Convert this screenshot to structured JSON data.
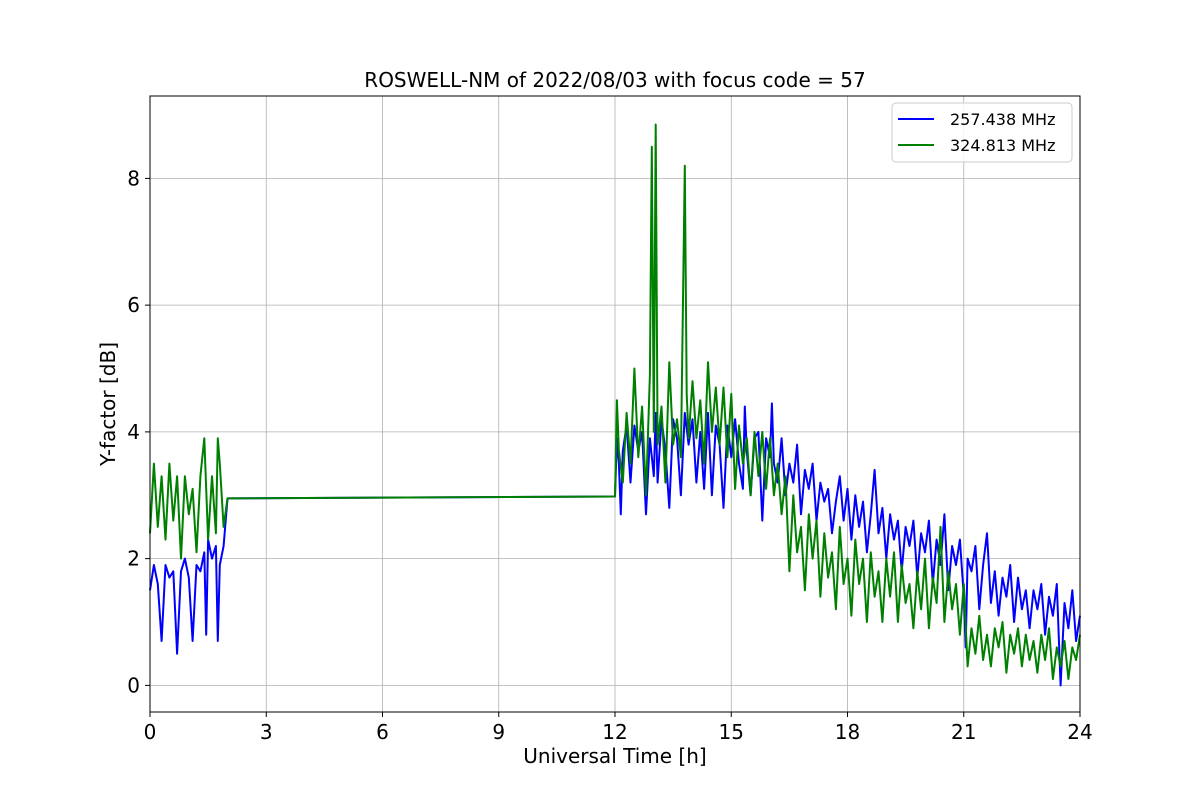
{
  "chart_data": {
    "type": "line",
    "title": "ROSWELL-NM of 2022/08/03 with focus code = 57",
    "xlabel": "Universal Time [h]",
    "ylabel": "Y-factor [dB]",
    "xlim": [
      0,
      24
    ],
    "ylim": [
      -0.42,
      9.3
    ],
    "xticks": [
      0,
      3,
      6,
      9,
      12,
      15,
      18,
      21,
      24
    ],
    "yticks": [
      0,
      2,
      4,
      6,
      8
    ],
    "grid": true,
    "legend_position": "upper right",
    "series": [
      {
        "name": "257.438 MHz",
        "color": "#0000ff",
        "points": [
          [
            0.0,
            1.5
          ],
          [
            0.1,
            1.9
          ],
          [
            0.2,
            1.6
          ],
          [
            0.3,
            0.7
          ],
          [
            0.4,
            1.9
          ],
          [
            0.5,
            1.7
          ],
          [
            0.6,
            1.8
          ],
          [
            0.7,
            0.5
          ],
          [
            0.8,
            1.8
          ],
          [
            0.9,
            2.0
          ],
          [
            1.0,
            1.7
          ],
          [
            1.1,
            0.7
          ],
          [
            1.2,
            1.9
          ],
          [
            1.3,
            1.8
          ],
          [
            1.4,
            2.1
          ],
          [
            1.45,
            0.8
          ],
          [
            1.5,
            2.3
          ],
          [
            1.6,
            2.0
          ],
          [
            1.7,
            2.2
          ],
          [
            1.75,
            0.7
          ],
          [
            1.8,
            1.9
          ],
          [
            1.9,
            2.2
          ],
          [
            2.0,
            2.95
          ],
          [
            12.0,
            2.98
          ],
          [
            12.05,
            3.9
          ],
          [
            12.1,
            3.5
          ],
          [
            12.15,
            2.7
          ],
          [
            12.2,
            3.7
          ],
          [
            12.3,
            4.1
          ],
          [
            12.4,
            3.2
          ],
          [
            12.5,
            4.1
          ],
          [
            12.6,
            3.7
          ],
          [
            12.7,
            4.0
          ],
          [
            12.8,
            2.7
          ],
          [
            12.9,
            3.9
          ],
          [
            13.0,
            3.3
          ],
          [
            13.05,
            4.3
          ],
          [
            13.1,
            3.2
          ],
          [
            13.2,
            4.2
          ],
          [
            13.3,
            3.7
          ],
          [
            13.4,
            2.8
          ],
          [
            13.5,
            4.2
          ],
          [
            13.6,
            3.9
          ],
          [
            13.7,
            3.0
          ],
          [
            13.8,
            4.3
          ],
          [
            13.9,
            3.8
          ],
          [
            14.0,
            4.2
          ],
          [
            14.1,
            3.2
          ],
          [
            14.2,
            4.0
          ],
          [
            14.3,
            3.1
          ],
          [
            14.4,
            4.3
          ],
          [
            14.5,
            3.0
          ],
          [
            14.6,
            4.1
          ],
          [
            14.7,
            3.8
          ],
          [
            14.8,
            2.8
          ],
          [
            14.9,
            4.1
          ],
          [
            15.0,
            3.6
          ],
          [
            15.1,
            4.2
          ],
          [
            15.2,
            3.5
          ],
          [
            15.3,
            3.1
          ],
          [
            15.35,
            4.4
          ],
          [
            15.4,
            3.7
          ],
          [
            15.5,
            3.0
          ],
          [
            15.6,
            3.9
          ],
          [
            15.7,
            4.0
          ],
          [
            15.8,
            2.6
          ],
          [
            15.9,
            3.9
          ],
          [
            16.0,
            3.6
          ],
          [
            16.05,
            4.45
          ],
          [
            16.1,
            3.5
          ],
          [
            16.2,
            3.2
          ],
          [
            16.3,
            3.9
          ],
          [
            16.4,
            3.0
          ],
          [
            16.5,
            3.5
          ],
          [
            16.6,
            3.2
          ],
          [
            16.7,
            3.8
          ],
          [
            16.8,
            2.7
          ],
          [
            16.9,
            3.4
          ],
          [
            17.0,
            3.1
          ],
          [
            17.1,
            3.5
          ],
          [
            17.2,
            2.6
          ],
          [
            17.3,
            3.2
          ],
          [
            17.4,
            2.9
          ],
          [
            17.5,
            3.1
          ],
          [
            17.6,
            2.4
          ],
          [
            17.7,
            2.9
          ],
          [
            17.8,
            3.3
          ],
          [
            17.9,
            2.6
          ],
          [
            18.0,
            3.1
          ],
          [
            18.1,
            2.3
          ],
          [
            18.2,
            3.0
          ],
          [
            18.3,
            2.5
          ],
          [
            18.4,
            2.9
          ],
          [
            18.5,
            2.1
          ],
          [
            18.6,
            2.7
          ],
          [
            18.7,
            3.4
          ],
          [
            18.8,
            2.4
          ],
          [
            18.9,
            2.8
          ],
          [
            19.0,
            2.0
          ],
          [
            19.1,
            2.7
          ],
          [
            19.2,
            2.3
          ],
          [
            19.3,
            2.6
          ],
          [
            19.4,
            1.8
          ],
          [
            19.5,
            2.5
          ],
          [
            19.6,
            2.2
          ],
          [
            19.7,
            2.6
          ],
          [
            19.8,
            1.7
          ],
          [
            19.9,
            2.4
          ],
          [
            20.0,
            2.1
          ],
          [
            20.1,
            2.6
          ],
          [
            20.2,
            1.6
          ],
          [
            20.3,
            2.3
          ],
          [
            20.4,
            1.9
          ],
          [
            20.5,
            2.7
          ],
          [
            20.6,
            1.5
          ],
          [
            20.7,
            2.2
          ],
          [
            20.8,
            1.9
          ],
          [
            20.9,
            2.3
          ],
          [
            21.0,
            1.4
          ],
          [
            21.05,
            0.6
          ],
          [
            21.1,
            2.0
          ],
          [
            21.2,
            1.8
          ],
          [
            21.3,
            2.2
          ],
          [
            21.4,
            1.2
          ],
          [
            21.5,
            1.9
          ],
          [
            21.6,
            2.4
          ],
          [
            21.7,
            1.3
          ],
          [
            21.8,
            1.8
          ],
          [
            21.9,
            1.1
          ],
          [
            22.0,
            1.7
          ],
          [
            22.1,
            1.4
          ],
          [
            22.2,
            1.9
          ],
          [
            22.3,
            1.0
          ],
          [
            22.4,
            1.7
          ],
          [
            22.5,
            1.2
          ],
          [
            22.6,
            1.5
          ],
          [
            22.7,
            0.9
          ],
          [
            22.8,
            1.5
          ],
          [
            22.9,
            1.2
          ],
          [
            23.0,
            1.6
          ],
          [
            23.1,
            0.8
          ],
          [
            23.2,
            1.4
          ],
          [
            23.3,
            1.1
          ],
          [
            23.4,
            1.6
          ],
          [
            23.5,
            0.0
          ],
          [
            23.6,
            1.3
          ],
          [
            23.7,
            0.9
          ],
          [
            23.8,
            1.5
          ],
          [
            23.9,
            0.7
          ],
          [
            24.0,
            1.1
          ]
        ]
      },
      {
        "name": "324.813 MHz",
        "color": "#008000",
        "points": [
          [
            0.0,
            2.4
          ],
          [
            0.1,
            3.5
          ],
          [
            0.2,
            2.5
          ],
          [
            0.3,
            3.3
          ],
          [
            0.4,
            2.3
          ],
          [
            0.5,
            3.5
          ],
          [
            0.6,
            2.6
          ],
          [
            0.7,
            3.3
          ],
          [
            0.8,
            2.0
          ],
          [
            0.9,
            3.3
          ],
          [
            1.0,
            2.7
          ],
          [
            1.1,
            3.1
          ],
          [
            1.2,
            2.1
          ],
          [
            1.3,
            3.3
          ],
          [
            1.4,
            3.9
          ],
          [
            1.5,
            2.3
          ],
          [
            1.6,
            3.3
          ],
          [
            1.7,
            2.4
          ],
          [
            1.75,
            3.9
          ],
          [
            1.8,
            3.5
          ],
          [
            1.9,
            2.5
          ],
          [
            2.0,
            2.95
          ],
          [
            12.0,
            2.98
          ],
          [
            12.05,
            4.5
          ],
          [
            12.1,
            3.7
          ],
          [
            12.2,
            3.2
          ],
          [
            12.3,
            4.3
          ],
          [
            12.4,
            3.5
          ],
          [
            12.5,
            5.0
          ],
          [
            12.6,
            3.6
          ],
          [
            12.7,
            4.4
          ],
          [
            12.8,
            3.0
          ],
          [
            12.9,
            4.9
          ],
          [
            12.95,
            8.5
          ],
          [
            13.0,
            4.0
          ],
          [
            13.05,
            8.85
          ],
          [
            13.1,
            3.8
          ],
          [
            13.2,
            4.4
          ],
          [
            13.3,
            3.2
          ],
          [
            13.4,
            5.1
          ],
          [
            13.5,
            3.8
          ],
          [
            13.6,
            4.2
          ],
          [
            13.7,
            3.6
          ],
          [
            13.8,
            8.2
          ],
          [
            13.85,
            4.6
          ],
          [
            13.9,
            3.9
          ],
          [
            14.0,
            4.8
          ],
          [
            14.1,
            3.9
          ],
          [
            14.2,
            4.5
          ],
          [
            14.3,
            3.5
          ],
          [
            14.4,
            5.1
          ],
          [
            14.5,
            4.0
          ],
          [
            14.6,
            4.7
          ],
          [
            14.7,
            3.8
          ],
          [
            14.8,
            4.7
          ],
          [
            14.9,
            3.6
          ],
          [
            15.0,
            4.6
          ],
          [
            15.1,
            3.1
          ],
          [
            15.2,
            4.1
          ],
          [
            15.3,
            3.5
          ],
          [
            15.4,
            3.9
          ],
          [
            15.5,
            3.0
          ],
          [
            15.6,
            4.0
          ],
          [
            15.7,
            3.3
          ],
          [
            15.8,
            4.0
          ],
          [
            15.9,
            3.1
          ],
          [
            16.0,
            3.9
          ],
          [
            16.1,
            3.0
          ],
          [
            16.2,
            3.5
          ],
          [
            16.3,
            2.7
          ],
          [
            16.4,
            3.3
          ],
          [
            16.5,
            1.8
          ],
          [
            16.6,
            3.0
          ],
          [
            16.7,
            2.1
          ],
          [
            16.8,
            2.5
          ],
          [
            16.9,
            1.5
          ],
          [
            17.0,
            2.7
          ],
          [
            17.1,
            2.0
          ],
          [
            17.2,
            2.6
          ],
          [
            17.3,
            1.4
          ],
          [
            17.4,
            2.4
          ],
          [
            17.5,
            1.7
          ],
          [
            17.6,
            2.1
          ],
          [
            17.7,
            1.2
          ],
          [
            17.8,
            2.5
          ],
          [
            17.9,
            1.6
          ],
          [
            18.0,
            2.0
          ],
          [
            18.1,
            1.1
          ],
          [
            18.2,
            2.3
          ],
          [
            18.3,
            1.6
          ],
          [
            18.4,
            2.0
          ],
          [
            18.5,
            1.0
          ],
          [
            18.6,
            2.1
          ],
          [
            18.7,
            1.4
          ],
          [
            18.8,
            1.8
          ],
          [
            18.9,
            1.0
          ],
          [
            19.0,
            2.0
          ],
          [
            19.1,
            1.4
          ],
          [
            19.2,
            2.1
          ],
          [
            19.3,
            1.0
          ],
          [
            19.4,
            1.9
          ],
          [
            19.5,
            1.3
          ],
          [
            19.6,
            1.6
          ],
          [
            19.7,
            0.9
          ],
          [
            19.8,
            1.8
          ],
          [
            19.9,
            1.2
          ],
          [
            20.0,
            2.0
          ],
          [
            20.1,
            0.9
          ],
          [
            20.2,
            1.7
          ],
          [
            20.3,
            1.3
          ],
          [
            20.4,
            2.5
          ],
          [
            20.5,
            1.0
          ],
          [
            20.6,
            1.8
          ],
          [
            20.7,
            1.2
          ],
          [
            20.8,
            1.6
          ],
          [
            20.9,
            0.8
          ],
          [
            21.0,
            1.6
          ],
          [
            21.1,
            0.3
          ],
          [
            21.2,
            0.9
          ],
          [
            21.3,
            0.5
          ],
          [
            21.4,
            1.1
          ],
          [
            21.5,
            0.4
          ],
          [
            21.6,
            0.8
          ],
          [
            21.7,
            0.3
          ],
          [
            21.8,
            0.9
          ],
          [
            21.9,
            0.6
          ],
          [
            22.0,
            1.0
          ],
          [
            22.1,
            0.2
          ],
          [
            22.2,
            0.8
          ],
          [
            22.3,
            0.5
          ],
          [
            22.4,
            0.9
          ],
          [
            22.5,
            0.3
          ],
          [
            22.6,
            0.8
          ],
          [
            22.7,
            0.4
          ],
          [
            22.8,
            0.7
          ],
          [
            22.9,
            0.2
          ],
          [
            23.0,
            0.8
          ],
          [
            23.1,
            0.4
          ],
          [
            23.2,
            0.9
          ],
          [
            23.3,
            0.1
          ],
          [
            23.4,
            0.6
          ],
          [
            23.5,
            0.3
          ],
          [
            23.6,
            0.7
          ],
          [
            23.7,
            0.1
          ],
          [
            23.8,
            0.6
          ],
          [
            23.9,
            0.4
          ],
          [
            24.0,
            0.8
          ]
        ]
      }
    ]
  }
}
